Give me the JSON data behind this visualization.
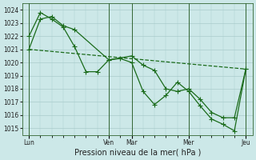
{
  "xlabel": "Pression niveau de la mer( hPa )",
  "background_color": "#cce8e8",
  "grid_color": "#aacccc",
  "line_color": "#1a6b1a",
  "yticks": [
    1015,
    1016,
    1017,
    1018,
    1019,
    1020,
    1021,
    1022,
    1023,
    1024
  ],
  "ylim": [
    1014.5,
    1024.5
  ],
  "vline_positions": [
    0.0,
    3.5,
    4.5,
    7.0,
    9.5
  ],
  "xtick_positions": [
    0.0,
    3.5,
    4.5,
    7.0,
    9.5
  ],
  "xtick_labels": [
    "Lun",
    "Ven",
    "Mar",
    "Mer",
    "Jeu"
  ],
  "line1_x": [
    0.0,
    0.5,
    1.0,
    1.5,
    2.0,
    3.5,
    4.5,
    5.0,
    5.5,
    6.0,
    6.5,
    7.0,
    7.5,
    8.0,
    8.5,
    9.0,
    9.5
  ],
  "line1_y": [
    1021.0,
    1023.3,
    1023.5,
    1022.8,
    1022.5,
    1020.2,
    1020.5,
    1019.8,
    1019.4,
    1018.0,
    1017.8,
    1018.0,
    1017.2,
    1016.2,
    1015.8,
    1015.8,
    1019.5
  ],
  "line2_x": [
    0.0,
    0.5,
    1.0,
    1.5,
    2.0,
    2.5,
    3.0,
    3.5,
    4.0,
    4.5,
    5.0,
    5.5,
    6.0,
    6.5,
    7.0,
    7.5,
    8.0,
    8.5,
    9.0,
    9.5
  ],
  "line2_y": [
    1022.0,
    1023.8,
    1023.3,
    1022.7,
    1021.2,
    1019.3,
    1019.3,
    1020.2,
    1020.3,
    1020.0,
    1017.8,
    1016.8,
    1017.5,
    1018.5,
    1017.8,
    1016.7,
    1015.7,
    1015.3,
    1014.8,
    1019.5
  ],
  "line3_x": [
    0.0,
    9.5
  ],
  "line3_y": [
    1021.0,
    1019.5
  ],
  "figsize": [
    3.2,
    2.0
  ],
  "dpi": 100
}
